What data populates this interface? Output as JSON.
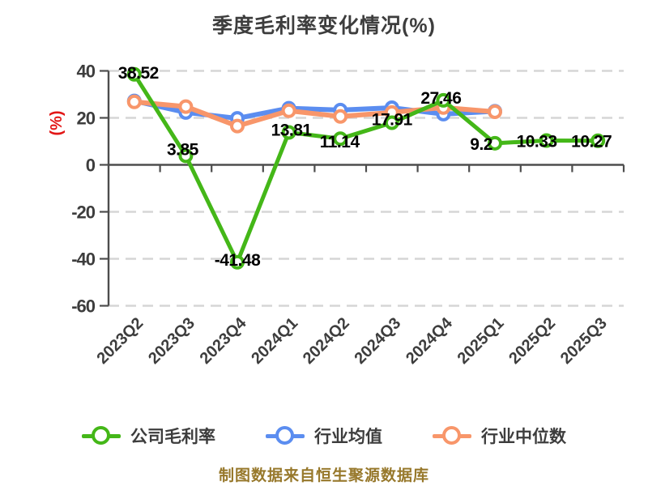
{
  "title": "季度毛利率变化情况(%)",
  "footer": "制图数据来自恒生聚源数据库",
  "colors": {
    "company_green": "#44b718",
    "industry_blue": "#5b8df0",
    "median_orange": "#f8966a",
    "grid_dashed": "#d6d6d6",
    "axis_line": "#4d4d4d",
    "tick_label": "#3d3d3d",
    "data_label": "#000000",
    "y_unit_label_red": "#e21717",
    "title_text": "#3d3d3d",
    "footer_text": "#97782b",
    "background": "#ffffff"
  },
  "chart_data": {
    "type": "line",
    "title": "季度毛利率变化情况(%)",
    "ylabel": "(%)",
    "xlabel": "",
    "categories": [
      "2023Q2",
      "2023Q3",
      "2023Q4",
      "2024Q1",
      "2024Q2",
      "2024Q3",
      "2024Q4",
      "2025Q1",
      "2025Q2",
      "2025Q3"
    ],
    "ylim": [
      -60,
      40
    ],
    "yticks": [
      40,
      20,
      0,
      -20,
      -40,
      -60
    ],
    "grid": "horizontal-dashed",
    "legend_position": "bottom",
    "series": [
      {
        "name": "公司毛利率",
        "color": "#44b718",
        "values": [
          38.52,
          3.85,
          -41.48,
          13.81,
          11.14,
          17.91,
          27.46,
          9.2,
          10.33,
          10.27
        ],
        "point_labels": [
          "38.52",
          "3.85",
          "-41.48",
          "13.81",
          "11.14",
          "17.91",
          "27.46",
          "9.2",
          "10.33",
          "10.27"
        ]
      },
      {
        "name": "行业均值",
        "color": "#5b8df0",
        "values": [
          27.2,
          22.3,
          19.8,
          24.1,
          23.3,
          24.3,
          21.6,
          22.8,
          null,
          null
        ],
        "point_labels": []
      },
      {
        "name": "行业中位数",
        "color": "#f8966a",
        "values": [
          26.8,
          24.8,
          16.5,
          23.0,
          20.6,
          22.3,
          24.4,
          22.6,
          null,
          null
        ],
        "point_labels": []
      }
    ]
  }
}
